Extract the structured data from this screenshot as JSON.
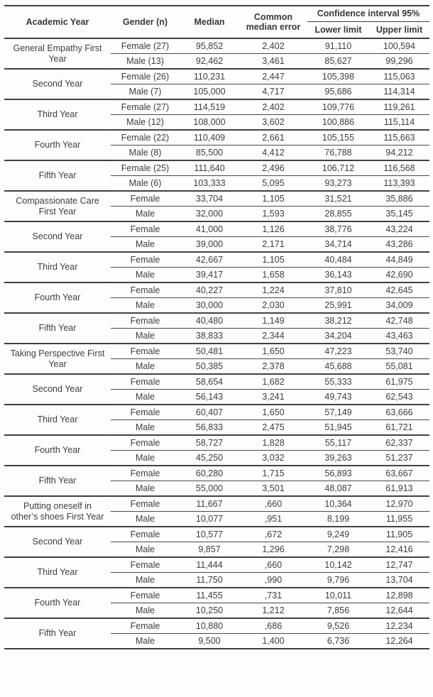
{
  "colors": {
    "background": "#fdfdfd",
    "text": "#3a3a3a",
    "rule": "#3f3f3f"
  },
  "table": {
    "header": {
      "academic_year": "Academic Year",
      "gender": "Gender (n)",
      "median": "Median",
      "common_median_error": "Common median error",
      "confidence_interval": "Confidence interval 95%",
      "lower_limit": "Lower limit",
      "upper_limit": "Upper limit"
    },
    "groups": [
      {
        "year": "General Empathy First Year",
        "rows": [
          {
            "gender": "Female (27)",
            "median": "95,852",
            "error": "2,402",
            "lower": "91,110",
            "upper": "100,594"
          },
          {
            "gender": "Male (13)",
            "median": "92,462",
            "error": "3,461",
            "lower": "85,627",
            "upper": "99,296"
          }
        ]
      },
      {
        "year": "Second Year",
        "rows": [
          {
            "gender": "Female (26)",
            "median": "110,231",
            "error": "2,447",
            "lower": "105,398",
            "upper": "115,063"
          },
          {
            "gender": "Male (7)",
            "median": "105,000",
            "error": "4,717",
            "lower": "95,686",
            "upper": "114,314"
          }
        ]
      },
      {
        "year": "Third Year",
        "rows": [
          {
            "gender": "Female (27)",
            "median": "114,519",
            "error": "2,402",
            "lower": "109,776",
            "upper": "119,261"
          },
          {
            "gender": "Male (12)",
            "median": "108,000",
            "error": "3,602",
            "lower": "100,886",
            "upper": "115,114"
          }
        ]
      },
      {
        "year": "Fourth Year",
        "rows": [
          {
            "gender": "Female (22)",
            "median": "110,409",
            "error": "2,661",
            "lower": "105,155",
            "upper": "115,663"
          },
          {
            "gender": "Male (8)",
            "median": "85,500",
            "error": "4,412",
            "lower": "76,788",
            "upper": "94,212"
          }
        ]
      },
      {
        "year": "Fifth Year",
        "rows": [
          {
            "gender": "Female (25)",
            "median": "111,640",
            "error": "2,496",
            "lower": "106,712",
            "upper": "116,568"
          },
          {
            "gender": "Male (6)",
            "median": "103,333",
            "error": "5,095",
            "lower": "93,273",
            "upper": "113,393"
          }
        ]
      },
      {
        "year": "Compassionate Care First Year",
        "rows": [
          {
            "gender": "Female",
            "median": "33,704",
            "error": "1,105",
            "lower": "31,521",
            "upper": "35,886"
          },
          {
            "gender": "Male",
            "median": "32,000",
            "error": "1,593",
            "lower": "28,855",
            "upper": "35,145"
          }
        ]
      },
      {
        "year": "Second Year",
        "rows": [
          {
            "gender": "Female",
            "median": "41,000",
            "error": "1,126",
            "lower": "38,776",
            "upper": "43,224"
          },
          {
            "gender": "Male",
            "median": "39,000",
            "error": "2,171",
            "lower": "34,714",
            "upper": "43,286"
          }
        ]
      },
      {
        "year": "Third Year",
        "rows": [
          {
            "gender": "Female",
            "median": "42,667",
            "error": "1,105",
            "lower": "40,484",
            "upper": "44,849"
          },
          {
            "gender": "Male",
            "median": "39,417",
            "error": "1,658",
            "lower": "36,143",
            "upper": "42,690"
          }
        ]
      },
      {
        "year": "Fourth Year",
        "rows": [
          {
            "gender": "Female",
            "median": "40,227",
            "error": "1,224",
            "lower": "37,810",
            "upper": "42,645"
          },
          {
            "gender": "Male",
            "median": "30,000",
            "error": "2,030",
            "lower": "25,991",
            "upper": "34,009"
          }
        ]
      },
      {
        "year": "Fifth Year",
        "rows": [
          {
            "gender": "Female",
            "median": "40,480",
            "error": "1,149",
            "lower": "38,212",
            "upper": "42,748"
          },
          {
            "gender": "Male",
            "median": "38,833",
            "error": "2,344",
            "lower": "34,204",
            "upper": "43,463"
          }
        ]
      },
      {
        "year": "Taking Perspective First Year",
        "rows": [
          {
            "gender": "Female",
            "median": "50,481",
            "error": "1,650",
            "lower": "47,223",
            "upper": "53,740"
          },
          {
            "gender": "Male",
            "median": "50,385",
            "error": "2,378",
            "lower": "45,688",
            "upper": "55,081"
          }
        ]
      },
      {
        "year": "Second Year",
        "rows": [
          {
            "gender": "Female",
            "median": "58,654",
            "error": "1,682",
            "lower": "55,333",
            "upper": "61,975"
          },
          {
            "gender": "Male",
            "median": "56,143",
            "error": "3,241",
            "lower": "49,743",
            "upper": "62,543"
          }
        ]
      },
      {
        "year": "Third Year",
        "rows": [
          {
            "gender": "Female",
            "median": "60,407",
            "error": "1,650",
            "lower": "57,149",
            "upper": "63,666"
          },
          {
            "gender": "Male",
            "median": "56,833",
            "error": "2,475",
            "lower": "51,945",
            "upper": "61,721"
          }
        ]
      },
      {
        "year": "Fourth Year",
        "rows": [
          {
            "gender": "Female",
            "median": "58,727",
            "error": "1,828",
            "lower": "55,117",
            "upper": "62,337"
          },
          {
            "gender": "Male",
            "median": "45,250",
            "error": "3,032",
            "lower": "39,263",
            "upper": "51,237"
          }
        ]
      },
      {
        "year": "Fifth Year",
        "rows": [
          {
            "gender": "Female",
            "median": "60,280",
            "error": "1,715",
            "lower": "56,893",
            "upper": "63,667"
          },
          {
            "gender": "Male",
            "median": "55,000",
            "error": "3,501",
            "lower": "48,087",
            "upper": "61,913"
          }
        ]
      },
      {
        "year": "Putting oneself in other’s shoes First Year",
        "rows": [
          {
            "gender": "Female",
            "median": "11,667",
            "error": ",660",
            "lower": "10,364",
            "upper": "12,970"
          },
          {
            "gender": "Male",
            "median": "10,077",
            "error": ",951",
            "lower": "8,199",
            "upper": "11,955"
          }
        ]
      },
      {
        "year": "Second Year",
        "rows": [
          {
            "gender": "Female",
            "median": "10,577",
            "error": ",672",
            "lower": "9,249",
            "upper": "11,905"
          },
          {
            "gender": "Male",
            "median": "9,857",
            "error": "1,296",
            "lower": "7,298",
            "upper": "12,416"
          }
        ]
      },
      {
        "year": "Third Year",
        "rows": [
          {
            "gender": "Female",
            "median": "11,444",
            "error": ",660",
            "lower": "10,142",
            "upper": "12,747"
          },
          {
            "gender": "Male",
            "median": "11,750",
            "error": ",990",
            "lower": "9,796",
            "upper": "13,704"
          }
        ]
      },
      {
        "year": "Fourth Year",
        "rows": [
          {
            "gender": "Female",
            "median": "11,455",
            "error": ",731",
            "lower": "10,011",
            "upper": "12,898"
          },
          {
            "gender": "Male",
            "median": "10,250",
            "error": "1,212",
            "lower": "7,856",
            "upper": "12,644"
          }
        ]
      },
      {
        "year": "Fifth Year",
        "rows": [
          {
            "gender": "Female",
            "median": "10,880",
            "error": ",686",
            "lower": "9,526",
            "upper": "12,234"
          },
          {
            "gender": "Male",
            "median": "9,500",
            "error": "1,400",
            "lower": "6,736",
            "upper": "12,264"
          }
        ]
      }
    ]
  }
}
